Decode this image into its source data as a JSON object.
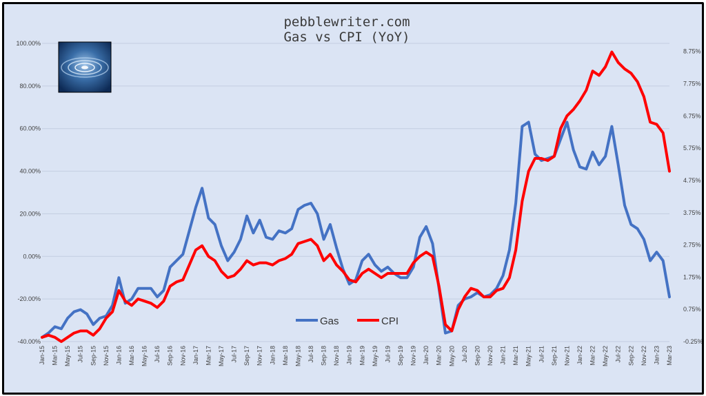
{
  "chart_data": {
    "type": "line",
    "title": "pebblewriter.com",
    "subtitle": "Gas vs CPI (YoY)",
    "x_labels": [
      "Jan-15",
      "Mar-15",
      "May-15",
      "Jul-15",
      "Sep-15",
      "Nov-15",
      "Jan-16",
      "Mar-16",
      "May-16",
      "Jul-16",
      "Sep-16",
      "Nov-16",
      "Jan-17",
      "Mar-17",
      "May-17",
      "Jul-17",
      "Sep-17",
      "Nov-17",
      "Jan-18",
      "Mar-18",
      "May-18",
      "Jul-18",
      "Sep-18",
      "Nov-18",
      "Jan-19",
      "Mar-19",
      "May-19",
      "Jul-19",
      "Sep-19",
      "Nov-19",
      "Jan-20",
      "Mar-20",
      "May-20",
      "Jul-20",
      "Sep-20",
      "Nov-20",
      "Jan-21",
      "Mar-21",
      "May-21",
      "Jul-21",
      "Sep-21",
      "Nov-21",
      "Jan-22",
      "Mar-22",
      "May-22",
      "Jul-22",
      "Sep-22",
      "Nov-22",
      "Jan-23",
      "Mar-23"
    ],
    "left_axis": {
      "ylim": [
        -40,
        100
      ],
      "ticks": [
        "-40.00%",
        "-20.00%",
        "0.00%",
        "20.00%",
        "40.00%",
        "60.00%",
        "80.00%",
        "100.00%"
      ]
    },
    "right_axis": {
      "ylim": [
        -0.25,
        9.0
      ],
      "ticks": [
        "-0.25%",
        "0.75%",
        "1.75%",
        "2.75%",
        "3.75%",
        "4.75%",
        "5.75%",
        "6.75%",
        "7.75%",
        "8.75%"
      ]
    },
    "grid": true,
    "legend_position": "bottom-center",
    "series": [
      {
        "name": "Gas",
        "color": "#4472c4",
        "axis": "left",
        "values": [
          -38,
          -36,
          -33,
          -34,
          -29,
          -26,
          -25,
          -27,
          -32,
          -29,
          -28,
          -23,
          -10,
          -22,
          -20,
          -15,
          -15,
          -15,
          -19,
          -16,
          -5,
          -2,
          1,
          12,
          23,
          32,
          18,
          15,
          5,
          -2,
          2,
          8,
          19,
          11,
          17,
          9,
          8,
          12,
          11,
          13,
          22,
          24,
          25,
          20,
          8,
          15,
          4,
          -6,
          -13,
          -11,
          -2,
          1,
          -4,
          -7,
          -5,
          -8,
          -10,
          -10,
          -5,
          9,
          14,
          6,
          -15,
          -36,
          -35,
          -23,
          -20,
          -19,
          -17,
          -19,
          -18,
          -15,
          -9,
          3,
          25,
          61,
          63,
          48,
          45,
          46,
          47,
          55,
          63,
          50,
          42,
          41,
          49,
          43,
          47,
          61,
          43,
          24,
          15,
          13,
          8,
          -2,
          2,
          -2,
          -19
        ]
      },
      {
        "name": "CPI",
        "color": "#ff0000",
        "axis": "left",
        "values": [
          -38,
          -37,
          -38,
          -40,
          -38,
          -36,
          -35,
          -35,
          -37,
          -34,
          -29,
          -26,
          -16,
          -21,
          -23,
          -20,
          -21,
          -22,
          -24,
          -21,
          -14,
          -12,
          -11,
          -4,
          3,
          5,
          0,
          -2,
          -7,
          -10,
          -9,
          -6,
          -2,
          -4,
          -3,
          -3,
          -4,
          -2,
          -1,
          1,
          6,
          7,
          8,
          5,
          -2,
          1,
          -4,
          -7,
          -11,
          -12,
          -8,
          -6,
          -8,
          -10,
          -8,
          -8,
          -8,
          -8,
          -3,
          0,
          2,
          0,
          -14,
          -32,
          -35,
          -25,
          -19,
          -15,
          -16,
          -19,
          -19,
          -16,
          -15,
          -10,
          3,
          26,
          40,
          46,
          46,
          45,
          47,
          60,
          66,
          69,
          73,
          78,
          87,
          85,
          89,
          96,
          91,
          88,
          86,
          82,
          75,
          63,
          62,
          58,
          40
        ]
      }
    ]
  },
  "legend": {
    "gas": "Gas",
    "cpi": "CPI"
  }
}
